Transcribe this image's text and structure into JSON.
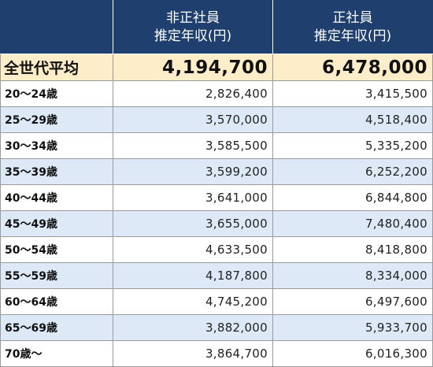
{
  "header": {
    "corner": "",
    "col1_line1": "非正社員",
    "col1_line2": "推定年収(円)",
    "col2_line1": "正社員",
    "col2_line2": "推定年収(円)"
  },
  "average": {
    "label": "全世代平均",
    "non_regular": "4,194,700",
    "regular": "6,478,000"
  },
  "rows": [
    {
      "age": "20～24歳",
      "non_regular": "2,826,400",
      "regular": "3,415,500"
    },
    {
      "age": "25～29歳",
      "non_regular": "3,570,000",
      "regular": "4,518,400"
    },
    {
      "age": "30～34歳",
      "non_regular": "3,585,500",
      "regular": "5,335,200"
    },
    {
      "age": "35～39歳",
      "non_regular": "3,599,200",
      "regular": "6,252,200"
    },
    {
      "age": "40～44歳",
      "non_regular": "3,641,000",
      "regular": "6,844,800"
    },
    {
      "age": "45～49歳",
      "non_regular": "3,655,000",
      "regular": "7,480,400"
    },
    {
      "age": "50～54歳",
      "non_regular": "4,633,500",
      "regular": "8,418,800"
    },
    {
      "age": "55～59歳",
      "non_regular": "4,187,800",
      "regular": "8,334,000"
    },
    {
      "age": "60～64歳",
      "non_regular": "4,745,200",
      "regular": "6,497,600"
    },
    {
      "age": "65～69歳",
      "non_regular": "3,882,000",
      "regular": "5,933,700"
    },
    {
      "age": "70歳～",
      "non_regular": "3,864,700",
      "regular": "6,016,300"
    }
  ],
  "colors": {
    "header_bg": "#1f3f6e",
    "average_bg": "#fdedc8",
    "stripe_bg": "#dde9f6"
  }
}
